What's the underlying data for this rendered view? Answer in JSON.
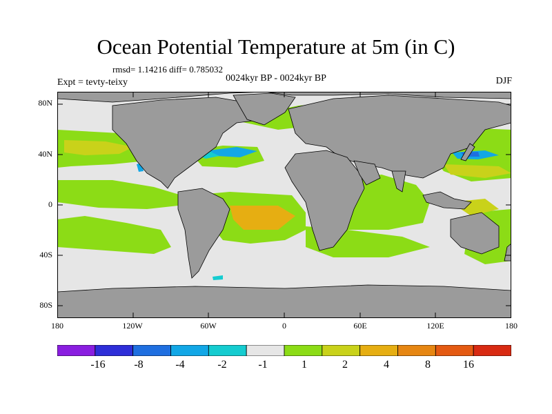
{
  "title": "Ocean Potential Temperature at 5m (in C)",
  "stats": "rmsd= 1.14216 diff= 0.785032",
  "experiment": "Expt = tevty-teixy",
  "period": "0024kyr BP - 0024kyr BP",
  "season": "DJF",
  "lat_labels": [
    "80N",
    "40N",
    "0",
    "40S",
    "80S"
  ],
  "lon_labels": [
    "180",
    "120W",
    "60W",
    "0",
    "60E",
    "120E",
    "180"
  ],
  "colorbar": {
    "colors": [
      "#8a1ee0",
      "#2e2ed8",
      "#1f6fe0",
      "#12a7e6",
      "#15ccd0",
      "#e6e6e6",
      "#8cdc16",
      "#c9d21a",
      "#e6ae12",
      "#e68612",
      "#e45a12",
      "#d82a12"
    ],
    "labels": [
      "-16",
      "-8",
      "-4",
      "-2",
      "-1",
      "1",
      "2",
      "4",
      "8",
      "16"
    ]
  },
  "colors": {
    "land": "#9b9b9b",
    "ocean_neutral": "#e6e6e6",
    "coast": "#000000"
  }
}
